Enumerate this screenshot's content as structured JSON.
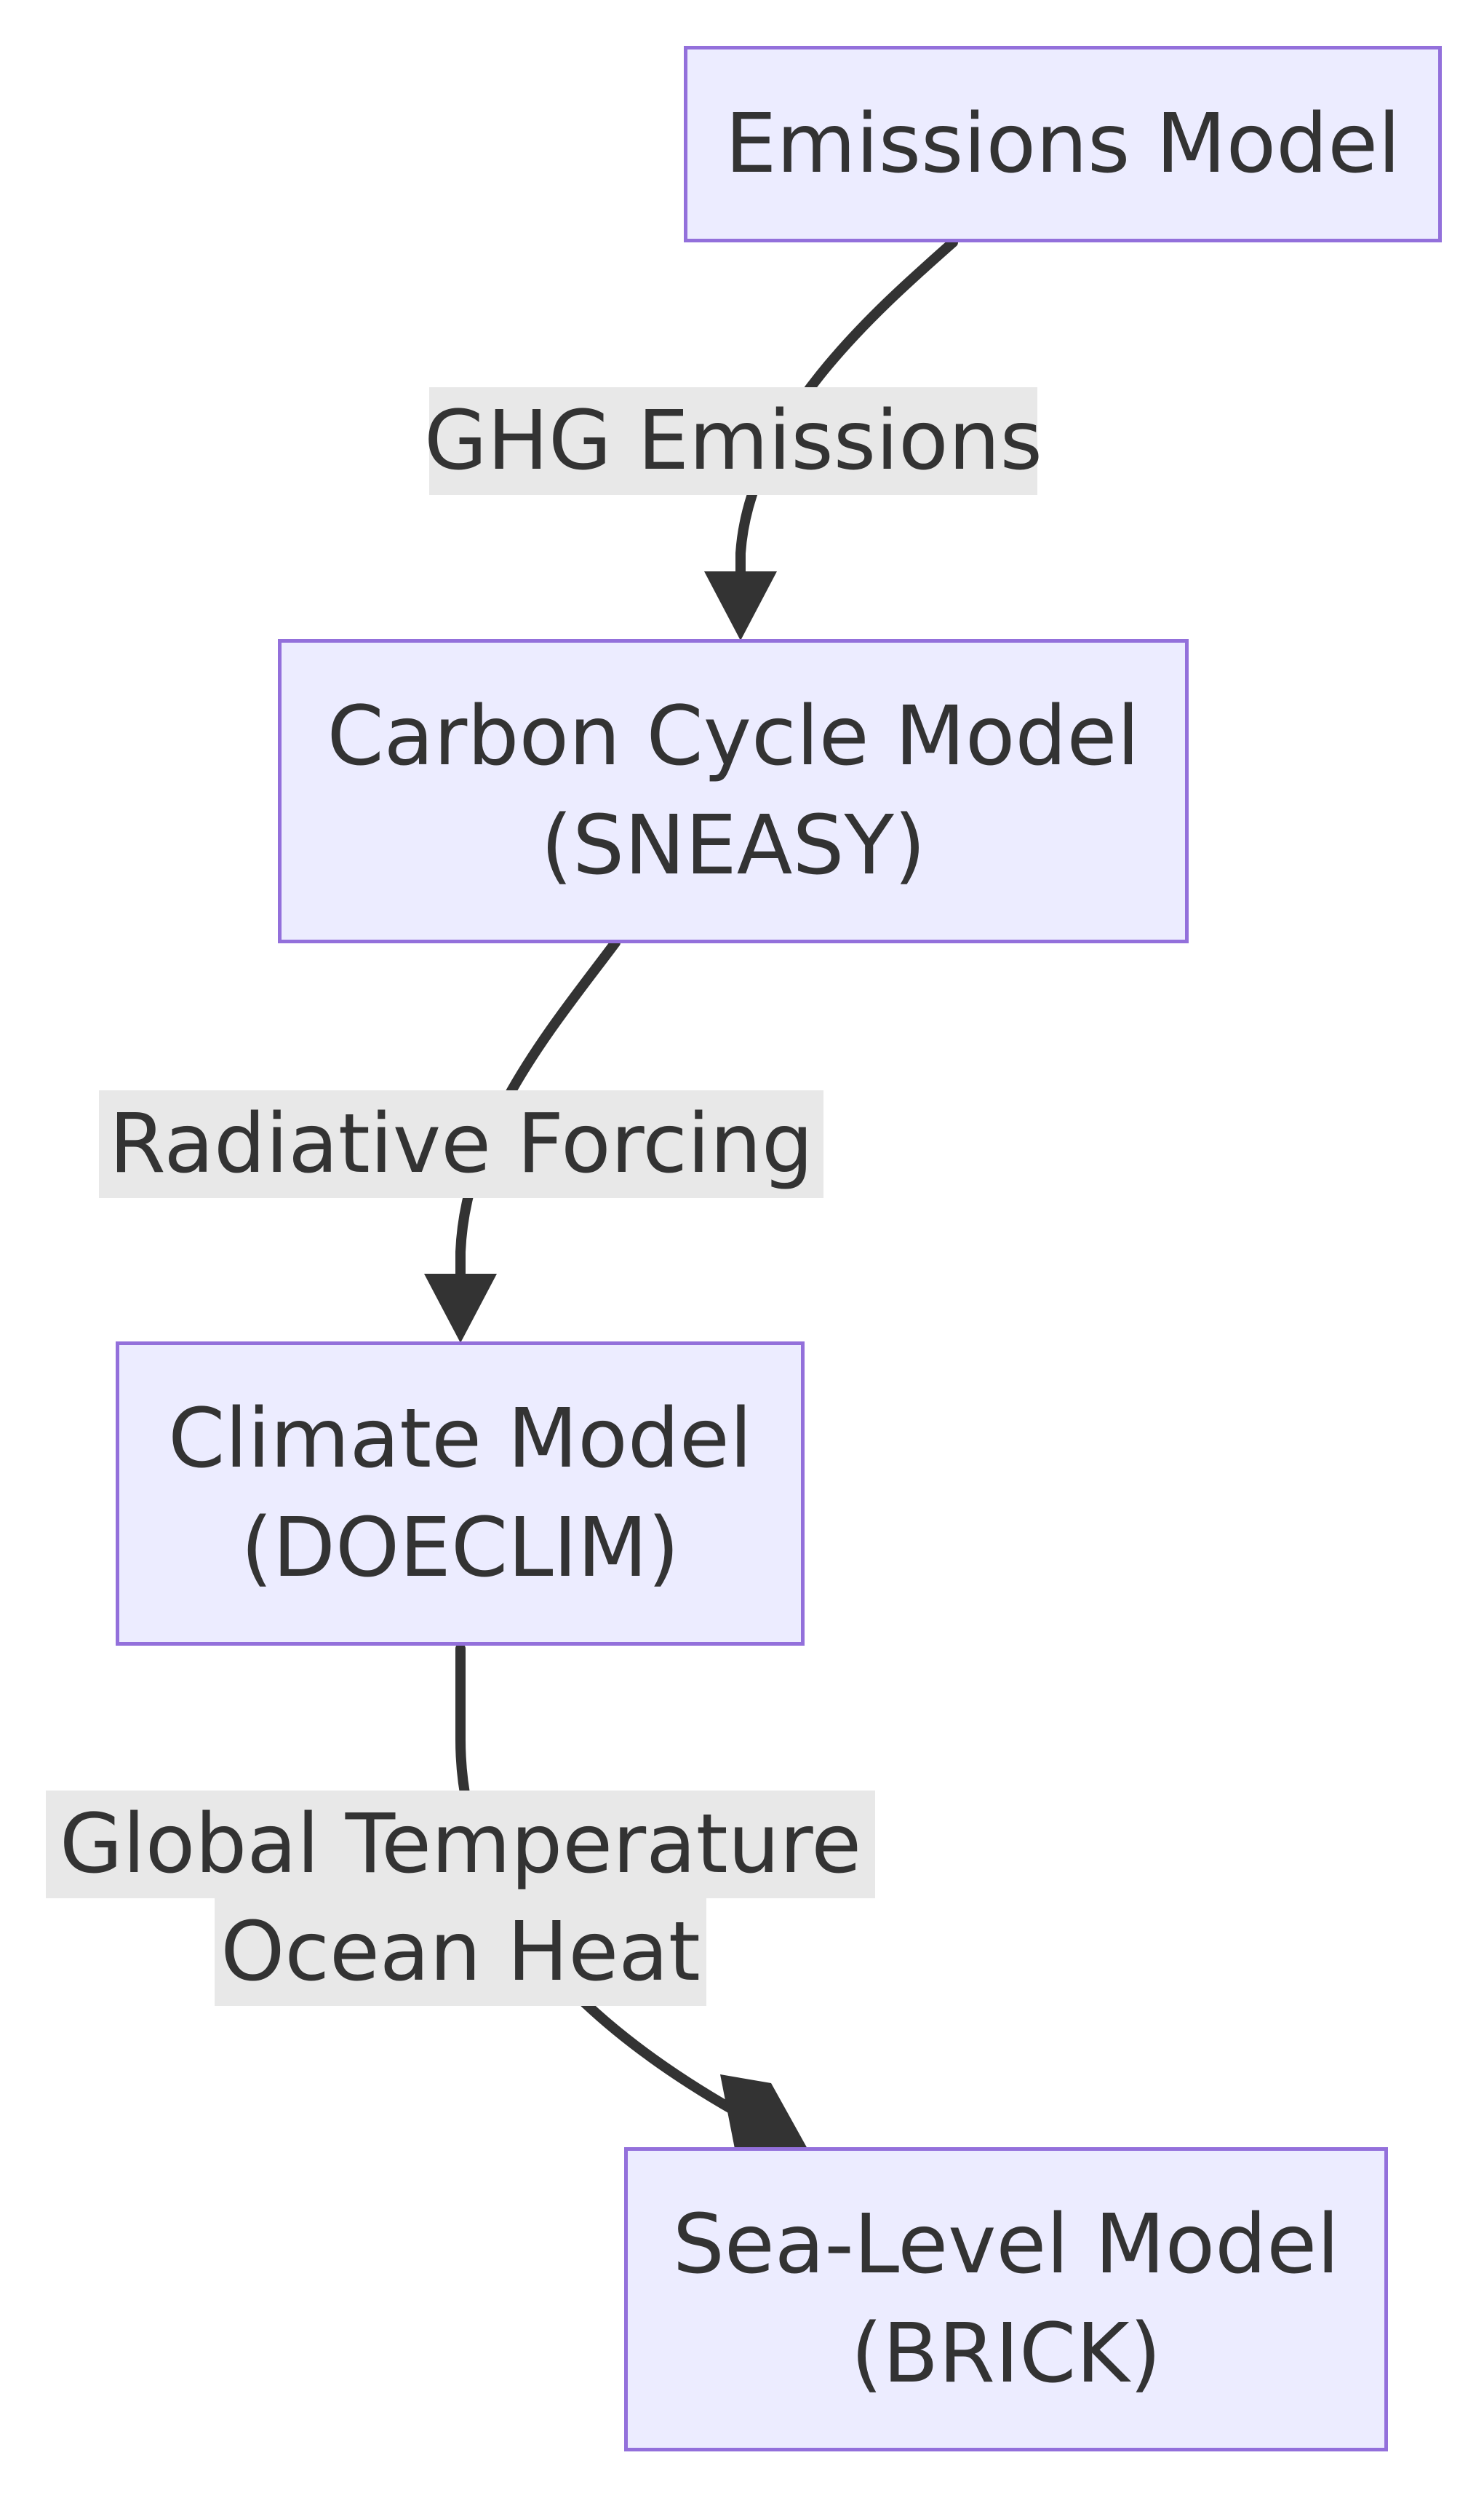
{
  "nodes": {
    "emissions": {
      "label": "Emissions Model"
    },
    "carbon": {
      "line1": "Carbon Cycle Model",
      "line2": "(SNEASY)"
    },
    "climate": {
      "line1": "Climate Model",
      "line2": "(DOECLIM)"
    },
    "sealevel": {
      "line1": "Sea-Level Model",
      "line2": "(BRICK)"
    }
  },
  "edges": {
    "emissions_to_carbon": {
      "label": "GHG Emissions"
    },
    "carbon_to_climate": {
      "label": "Radiative Forcing"
    },
    "climate_to_sealevel": {
      "line1": "Global Temperature",
      "line2": "Ocean Heat"
    }
  },
  "colors": {
    "node_fill": "#ececff",
    "node_border": "#9370db",
    "edge_stroke": "#333333",
    "edge_label_bg": "#e8e8e8",
    "text": "#333333"
  }
}
